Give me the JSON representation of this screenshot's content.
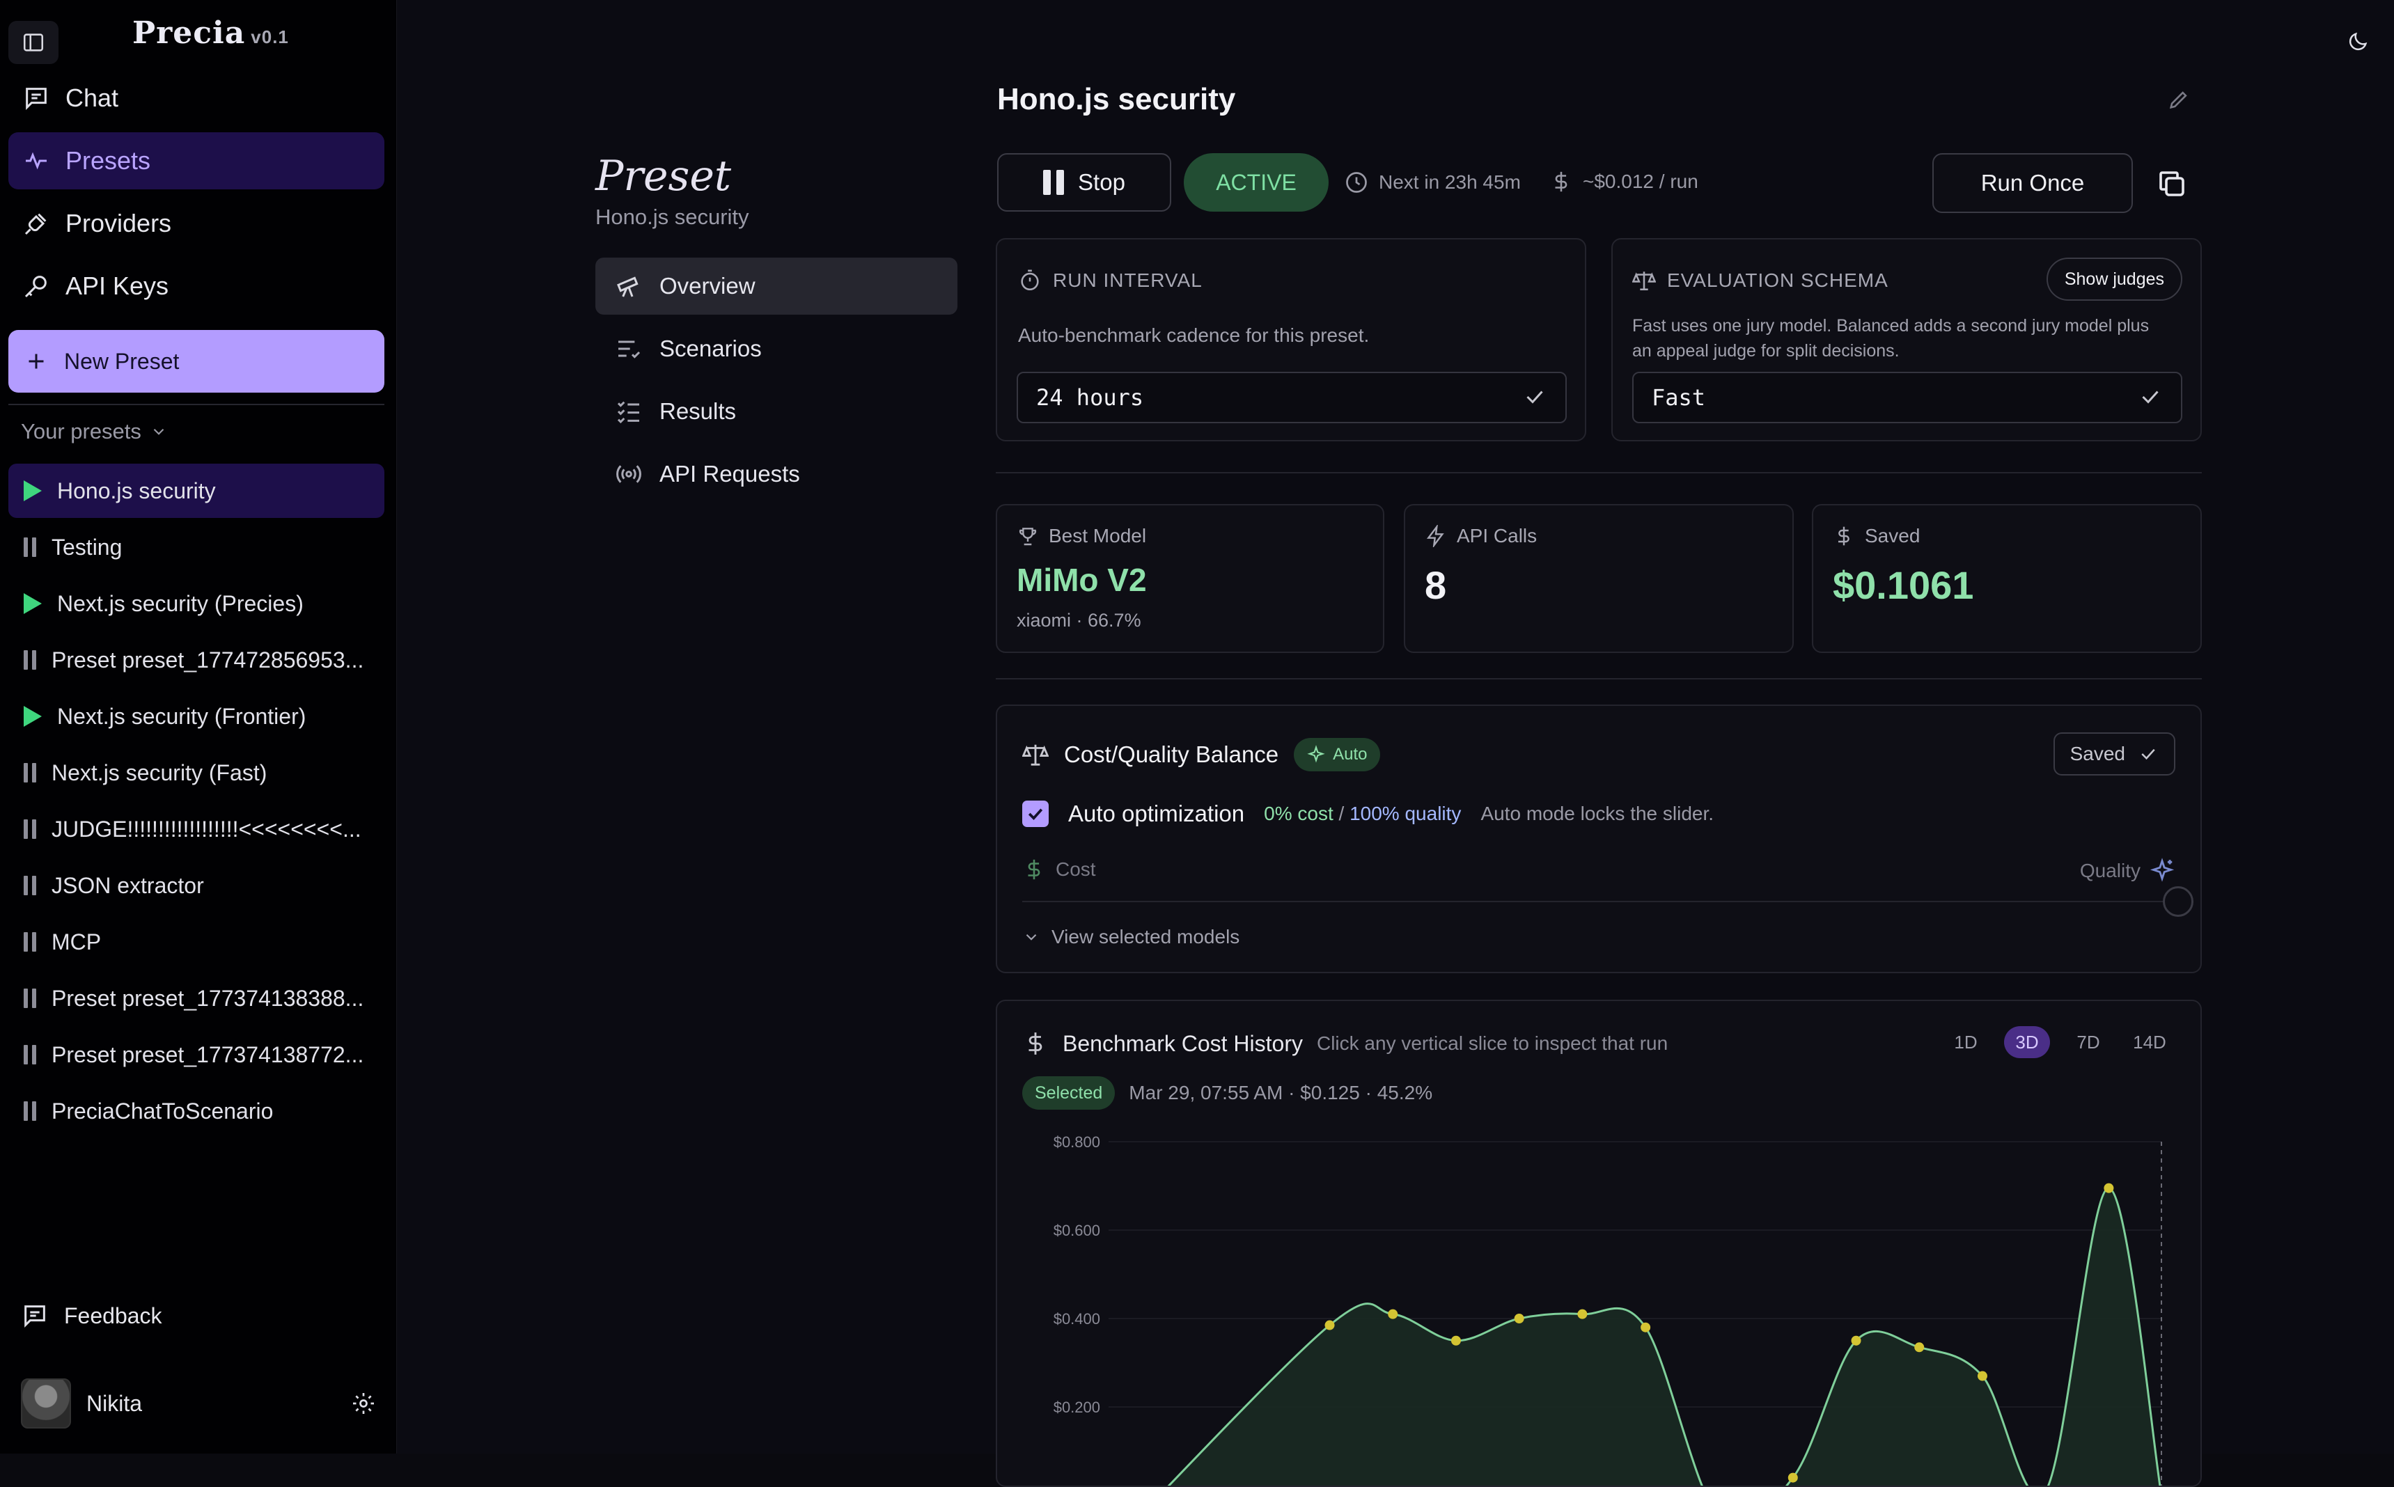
{
  "sidebar": {
    "brand": "Precia",
    "version": "v0.1",
    "nav": [
      {
        "label": "Chat",
        "icon": "chat-icon"
      },
      {
        "label": "Presets",
        "icon": "presets-icon"
      },
      {
        "label": "Providers",
        "icon": "plug-icon"
      },
      {
        "label": "API Keys",
        "icon": "key-icon"
      }
    ],
    "new_preset": "New Preset",
    "presets_header": "Your presets",
    "presets": [
      {
        "name": "Hono.js security",
        "status": "playing"
      },
      {
        "name": "Testing",
        "status": "paused"
      },
      {
        "name": "Next.js security (Precies)",
        "status": "playing"
      },
      {
        "name": "Preset preset_177472856953...",
        "status": "paused"
      },
      {
        "name": "Next.js security (Frontier)",
        "status": "playing"
      },
      {
        "name": "Next.js security (Fast)",
        "status": "paused"
      },
      {
        "name": "JUDGE!!!!!!!!!!!!!!!!!!<<<<<<<<...",
        "status": "paused"
      },
      {
        "name": "JSON extractor",
        "status": "paused"
      },
      {
        "name": "MCP",
        "status": "paused"
      },
      {
        "name": "Preset preset_177374138388...",
        "status": "paused"
      },
      {
        "name": "Preset preset_177374138772...",
        "status": "paused"
      },
      {
        "name": "PreciaChatToScenario",
        "status": "paused"
      }
    ],
    "feedback": "Feedback",
    "user": "Nikita"
  },
  "subnav": {
    "heading": "Preset",
    "subtitle": "Hono.js security",
    "items": [
      {
        "label": "Overview",
        "icon": "telescope-icon"
      },
      {
        "label": "Scenarios",
        "icon": "list-check-icon"
      },
      {
        "label": "Results",
        "icon": "checklist-icon"
      },
      {
        "label": "API Requests",
        "icon": "broadcast-icon"
      }
    ]
  },
  "main": {
    "title": "Hono.js security",
    "stop_label": "Stop",
    "status": "ACTIVE",
    "next_run": "Next in 23h 45m",
    "cost_per_run": "~$0.012 / run",
    "run_once": "Run Once",
    "run_interval": {
      "label": "RUN INTERVAL",
      "desc": "Auto-benchmark cadence for this preset.",
      "value": "24 hours"
    },
    "eval_schema": {
      "label": "EVALUATION SCHEMA",
      "button": "Show judges",
      "desc_line1": "Fast uses one jury model. Balanced adds a second jury model plus",
      "desc_line2": "an appeal judge for split decisions.",
      "value": "Fast"
    },
    "stats": [
      {
        "label": "Best Model",
        "value": "MiMo V2",
        "sub": "xiaomi · 66.7%",
        "icon": "trophy-icon"
      },
      {
        "label": "API Calls",
        "value": "8",
        "icon": "bolt-icon"
      },
      {
        "label": "Saved",
        "value": "$0.1061",
        "icon": "dollar-icon"
      }
    ],
    "balance": {
      "title": "Cost/Quality Balance",
      "chip": "Auto",
      "saved": "Saved",
      "auto_label": "Auto optimization",
      "cost_pct": "0% cost",
      "slash": " / ",
      "quality_pct": "100% quality",
      "lock_note": "Auto mode locks the slider.",
      "cost_label": "Cost",
      "quality_label": "Quality",
      "slider_value": 1.0,
      "view_models": "View selected models"
    },
    "history": {
      "title": "Benchmark Cost History",
      "hint": "Click any vertical slice to inspect that run",
      "ranges": [
        "1D",
        "3D",
        "7D",
        "14D"
      ],
      "selected_range": "3D",
      "selected_tag": "Selected",
      "selected_info": "Mar 29, 07:55 AM · $0.125 · 45.2%"
    }
  },
  "chart_data": {
    "type": "area",
    "title": "Benchmark Cost History",
    "ylim": [
      0,
      0.8
    ],
    "yticks": [
      "$0.800",
      "$0.600",
      "$0.400",
      "$0.200"
    ],
    "ytick_values": [
      0.8,
      0.6,
      0.4,
      0.2
    ],
    "points": [
      {
        "x": 0.0,
        "y": -0.12,
        "dot": false
      },
      {
        "x": 0.21,
        "y": 0.385,
        "dot": true
      },
      {
        "x": 0.27,
        "y": 0.41,
        "dot": true
      },
      {
        "x": 0.33,
        "y": 0.35,
        "dot": true
      },
      {
        "x": 0.39,
        "y": 0.4,
        "dot": true
      },
      {
        "x": 0.45,
        "y": 0.41,
        "dot": true
      },
      {
        "x": 0.51,
        "y": 0.38,
        "dot": true
      },
      {
        "x": 0.58,
        "y": -0.05,
        "dot": false
      },
      {
        "x": 0.65,
        "y": 0.04,
        "dot": true
      },
      {
        "x": 0.71,
        "y": 0.35,
        "dot": true
      },
      {
        "x": 0.77,
        "y": 0.335,
        "dot": true
      },
      {
        "x": 0.83,
        "y": 0.27,
        "dot": true
      },
      {
        "x": 0.89,
        "y": 0.01,
        "dot": true
      },
      {
        "x": 0.95,
        "y": 0.695,
        "dot": true
      },
      {
        "x": 1.0,
        "y": 0.0,
        "dot": true
      }
    ],
    "colors": {
      "line": "#7fcf9a",
      "dot": "#d4c433",
      "fill": "#1a2a22"
    }
  },
  "colors": {
    "accent": "#b39cff",
    "active_nav_bg": "#1d0f4a",
    "success": "#3fd67e"
  }
}
